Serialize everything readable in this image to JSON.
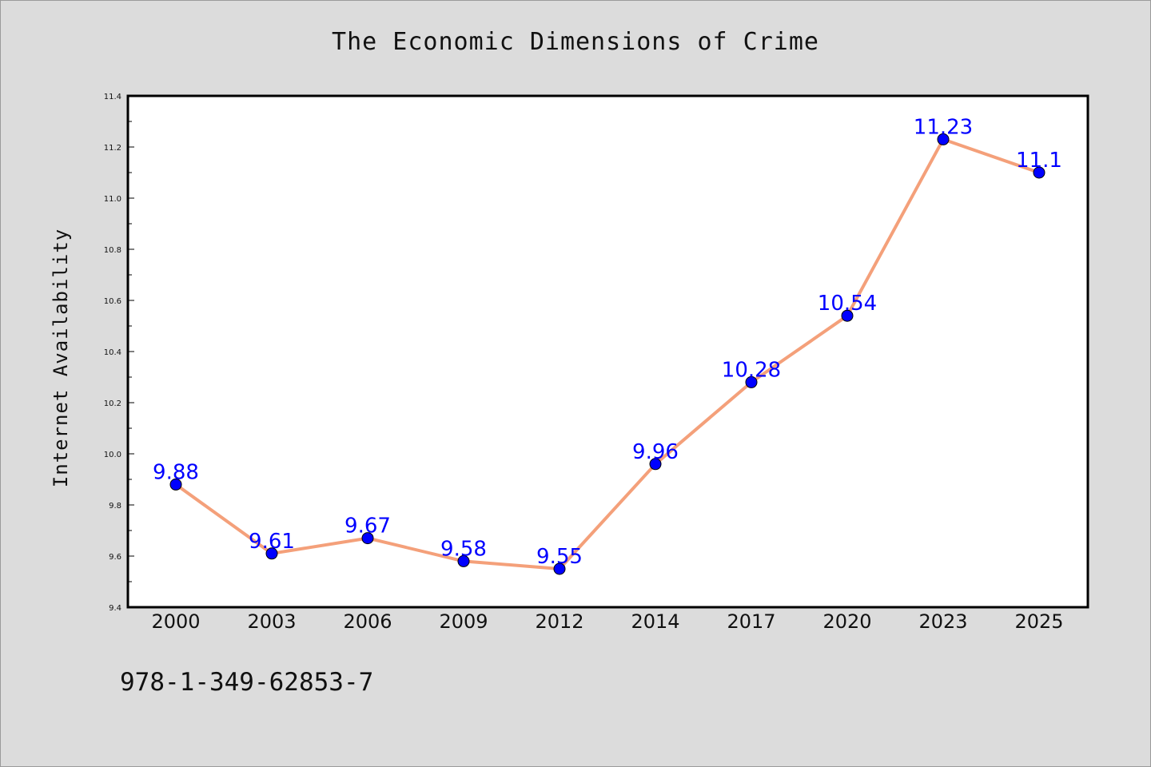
{
  "chart_data": {
    "type": "line",
    "title": "The Economic Dimensions of Crime",
    "xlabel": "",
    "ylabel": "Internet Availability",
    "categories": [
      "2000",
      "2003",
      "2006",
      "2009",
      "2012",
      "2014",
      "2017",
      "2020",
      "2023",
      "2025"
    ],
    "series": [
      {
        "values": [
          9.88,
          9.61,
          9.67,
          9.58,
          9.55,
          9.96,
          10.28,
          10.54,
          11.23,
          11.1
        ]
      }
    ],
    "data_labels": [
      "9.88",
      "9.61",
      "9.67",
      "9.58",
      "9.55",
      "9.96",
      "10.28",
      "10.54",
      "11.23",
      "11.1"
    ],
    "ylim": [
      9.4,
      11.4
    ],
    "yticks": [
      "9.4",
      "9.6",
      "9.8",
      "10.0",
      "10.2",
      "10.4",
      "10.6",
      "10.8",
      "11.0",
      "11.2",
      "11.4"
    ],
    "grid": false,
    "legend": "none",
    "colors": {
      "line": "#f4a07a",
      "marker": "#0000ff",
      "label": "#0000ff",
      "plot_bg": "#ffffff",
      "page_bg": "#dcdcdc"
    }
  },
  "footer": {
    "isbn": "978-1-349-62853-7"
  }
}
